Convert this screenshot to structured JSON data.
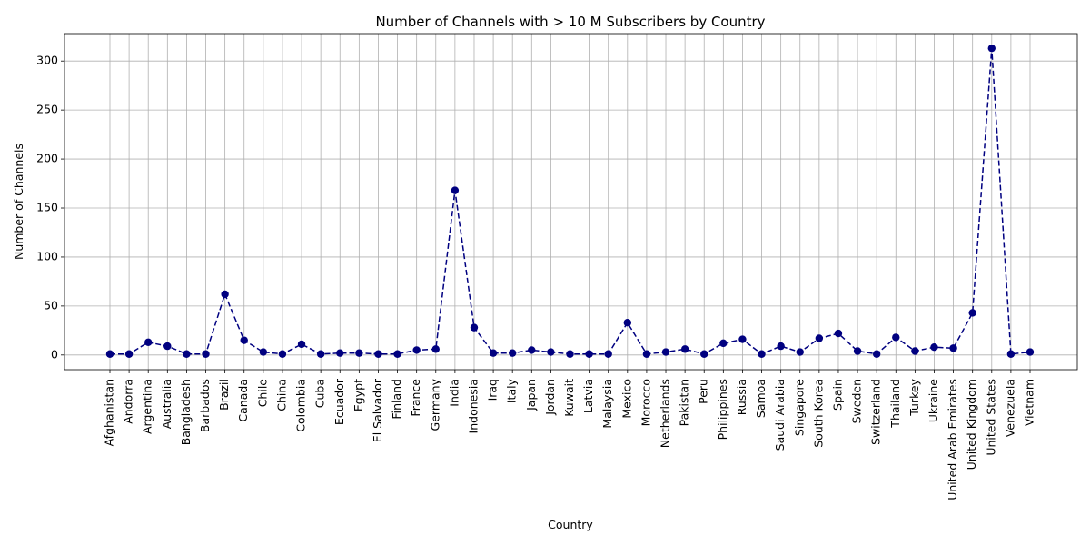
{
  "chart_data": {
    "type": "line",
    "title": "Number of Channels with > 10 M Subscribers by Country",
    "xlabel": "Country",
    "ylabel": "Number of Channels",
    "ylim": [
      -15,
      328
    ],
    "yticks": [
      0,
      50,
      100,
      150,
      200,
      250,
      300
    ],
    "grid": true,
    "line_style": "dashed",
    "marker": "circle",
    "color": "#000080",
    "categories": [
      "Afghanistan",
      "Andorra",
      "Argentina",
      "Australia",
      "Bangladesh",
      "Barbados",
      "Brazil",
      "Canada",
      "Chile",
      "China",
      "Colombia",
      "Cuba",
      "Ecuador",
      "Egypt",
      "El Salvador",
      "Finland",
      "France",
      "Germany",
      "India",
      "Indonesia",
      "Iraq",
      "Italy",
      "Japan",
      "Jordan",
      "Kuwait",
      "Latvia",
      "Malaysia",
      "Mexico",
      "Morocco",
      "Netherlands",
      "Pakistan",
      "Peru",
      "Philippines",
      "Russia",
      "Samoa",
      "Saudi Arabia",
      "Singapore",
      "South Korea",
      "Spain",
      "Sweden",
      "Switzerland",
      "Thailand",
      "Turkey",
      "Ukraine",
      "United Arab Emirates",
      "United Kingdom",
      "United States",
      "Venezuela",
      "Vietnam"
    ],
    "values": [
      1,
      1,
      13,
      9,
      1,
      1,
      62,
      15,
      3,
      1,
      11,
      1,
      2,
      2,
      1,
      1,
      5,
      6,
      168,
      28,
      2,
      2,
      5,
      3,
      1,
      1,
      1,
      33,
      1,
      3,
      6,
      1,
      12,
      16,
      1,
      9,
      3,
      17,
      22,
      4,
      1,
      18,
      4,
      8,
      7,
      43,
      313,
      1,
      3
    ]
  }
}
